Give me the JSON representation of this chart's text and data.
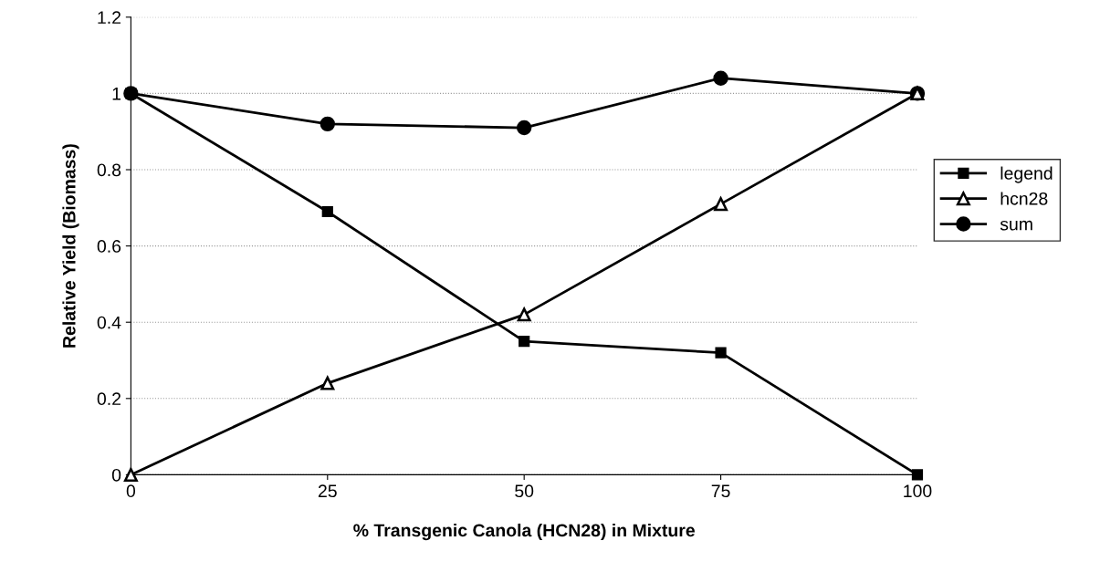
{
  "chart_data": {
    "type": "line",
    "xlabel": "% Transgenic Canola (HCN28) in Mixture",
    "ylabel": "Relative Yield (Biomass)",
    "x": [
      0,
      25,
      50,
      75,
      100
    ],
    "series": [
      {
        "name": "legend",
        "color": "#000000",
        "marker": "square",
        "values": [
          1,
          0.69,
          0.35,
          0.32,
          0
        ]
      },
      {
        "name": "hcn28",
        "color": "#000000",
        "marker": "triangle",
        "values": [
          0,
          0.24,
          0.42,
          0.71,
          1
        ]
      },
      {
        "name": "sum",
        "color": "#000000",
        "marker": "circle",
        "values": [
          1,
          0.92,
          0.91,
          1.04,
          1
        ]
      }
    ],
    "xlim": [
      0,
      100
    ],
    "xticks": [
      0,
      25,
      50,
      75,
      100
    ],
    "ylim": [
      0,
      1.2
    ],
    "yticks": [
      0,
      0.2,
      0.4,
      0.6,
      0.8,
      1,
      1.2
    ],
    "grid": "y",
    "legend": "right",
    "line_style": "solid"
  }
}
